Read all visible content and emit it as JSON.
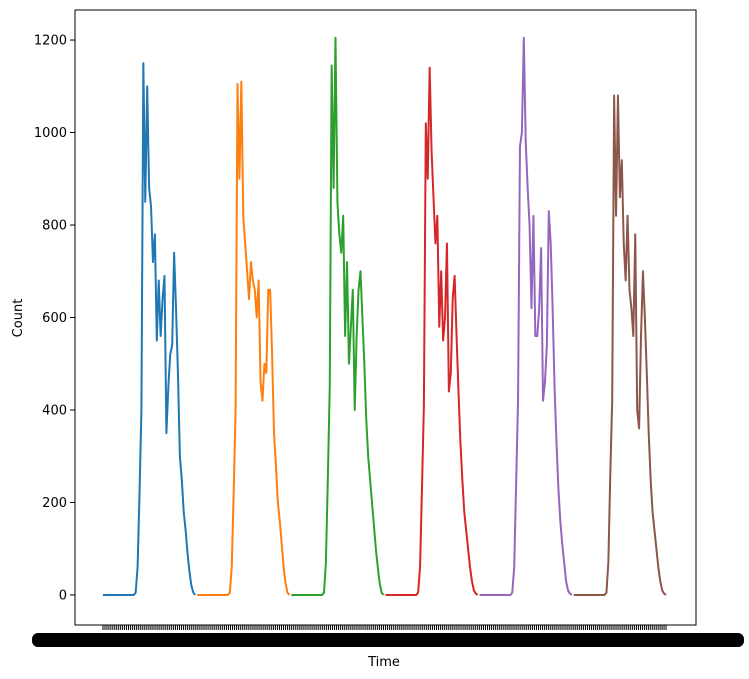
{
  "chart_data": {
    "type": "line",
    "title": "",
    "xlabel": "Time",
    "ylabel": "Count",
    "ylim": [
      -65,
      1265
    ],
    "yticks": [
      0,
      200,
      400,
      600,
      800,
      1000,
      1200
    ],
    "x": [
      0,
      2,
      4,
      6,
      8,
      10,
      12,
      14,
      16,
      18,
      20,
      22,
      24,
      26,
      28,
      30,
      32,
      34,
      36,
      38,
      40,
      42,
      44,
      46,
      48,
      50,
      52,
      54,
      56,
      58,
      60,
      62,
      64,
      66,
      68,
      70,
      72,
      74,
      76,
      78,
      80,
      82,
      84,
      86,
      88,
      90,
      92,
      94,
      96
    ],
    "x_tick_count": 288,
    "x_tick_labels_note": "overlapping tick labels render as a solid black band",
    "grid": false,
    "legend": "none",
    "series": [
      {
        "color": "#1f77b4",
        "values": [
          0,
          0,
          0,
          0,
          0,
          0,
          0,
          0,
          0,
          0,
          0,
          0,
          0,
          0,
          0,
          0,
          0,
          5,
          60,
          220,
          400,
          1150,
          850,
          1100,
          880,
          840,
          720,
          780,
          550,
          680,
          560,
          640,
          690,
          350,
          450,
          520,
          540,
          740,
          620,
          480,
          300,
          250,
          180,
          140,
          90,
          50,
          20,
          5,
          0
        ]
      },
      {
        "color": "#ff7f0e",
        "values": [
          0,
          0,
          0,
          0,
          0,
          0,
          0,
          0,
          0,
          0,
          0,
          0,
          0,
          0,
          0,
          0,
          0,
          5,
          60,
          220,
          400,
          1105,
          900,
          1110,
          820,
          760,
          700,
          640,
          720,
          680,
          660,
          600,
          680,
          460,
          420,
          500,
          480,
          660,
          660,
          520,
          350,
          280,
          200,
          160,
          110,
          60,
          25,
          5,
          0
        ]
      },
      {
        "color": "#2ca02c",
        "values": [
          0,
          0,
          0,
          0,
          0,
          0,
          0,
          0,
          0,
          0,
          0,
          0,
          0,
          0,
          0,
          0,
          0,
          5,
          70,
          250,
          450,
          1145,
          880,
          1205,
          850,
          780,
          740,
          820,
          560,
          720,
          500,
          580,
          660,
          400,
          560,
          660,
          700,
          600,
          500,
          380,
          300,
          250,
          200,
          150,
          100,
          60,
          25,
          5,
          0
        ]
      },
      {
        "color": "#d62728",
        "values": [
          0,
          0,
          0,
          0,
          0,
          0,
          0,
          0,
          0,
          0,
          0,
          0,
          0,
          0,
          0,
          0,
          0,
          5,
          60,
          230,
          410,
          1020,
          900,
          1140,
          960,
          860,
          760,
          820,
          580,
          700,
          550,
          600,
          760,
          440,
          480,
          640,
          690,
          560,
          440,
          330,
          250,
          180,
          140,
          100,
          60,
          30,
          10,
          3,
          0
        ]
      },
      {
        "color": "#9467bd",
        "values": [
          0,
          0,
          0,
          0,
          0,
          0,
          0,
          0,
          0,
          0,
          0,
          0,
          0,
          0,
          0,
          0,
          0,
          5,
          60,
          240,
          420,
          970,
          1000,
          1205,
          980,
          880,
          800,
          620,
          820,
          560,
          560,
          620,
          750,
          420,
          460,
          540,
          830,
          760,
          620,
          450,
          330,
          230,
          160,
          110,
          70,
          30,
          10,
          3,
          0
        ]
      },
      {
        "color": "#8c564b",
        "values": [
          0,
          0,
          0,
          0,
          0,
          0,
          0,
          0,
          0,
          0,
          0,
          0,
          0,
          0,
          0,
          0,
          0,
          5,
          70,
          260,
          420,
          1080,
          820,
          1080,
          860,
          940,
          760,
          680,
          820,
          660,
          620,
          560,
          780,
          400,
          360,
          560,
          700,
          600,
          480,
          350,
          250,
          180,
          140,
          100,
          60,
          30,
          10,
          3,
          0
        ]
      }
    ]
  }
}
